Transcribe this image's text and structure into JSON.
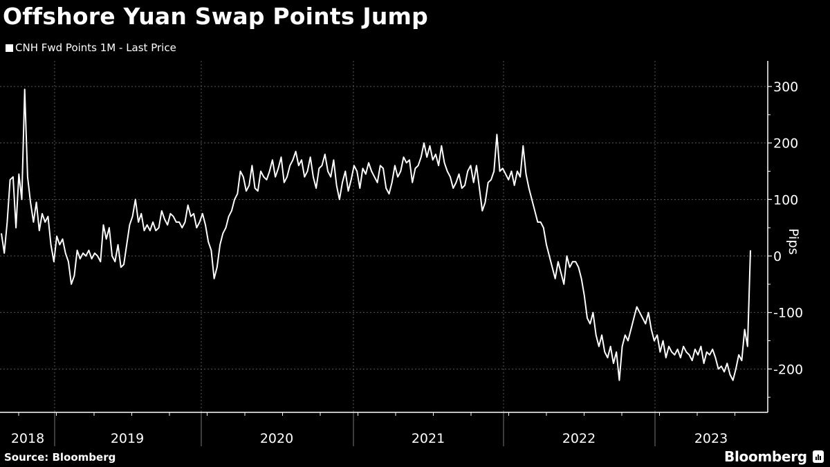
{
  "header": {
    "title": "Offshore Yuan Swap Points Jump",
    "legend_label": "CNH Fwd Points 1M - Last Price"
  },
  "footer": {
    "source": "Source: Bloomberg",
    "brand": "Bloomberg"
  },
  "colors": {
    "background": "#000000",
    "line": "#ffffff",
    "grid": "#666666"
  },
  "chart_data": {
    "type": "line",
    "title": "Offshore Yuan Swap Points Jump",
    "xlabel": "",
    "ylabel": "Pips",
    "ylim": [
      -280,
      350
    ],
    "yticks": [
      300,
      200,
      100,
      0,
      -100,
      -200
    ],
    "ytick_labels": [
      "300",
      "200",
      "100",
      "0",
      "-100",
      "-200"
    ],
    "xtick_labels": [
      "2018",
      "2019",
      "2020",
      "2021",
      "2022",
      "2023"
    ],
    "grid": true,
    "legend": [
      "CNH Fwd Points 1M - Last Price"
    ],
    "legend_position": "top-left",
    "series": [
      {
        "name": "CNH Fwd Points 1M - Last Price",
        "x_start": "2018-08",
        "x_end": "2023-04",
        "values": [
          40,
          5,
          60,
          135,
          140,
          50,
          145,
          100,
          295,
          140,
          95,
          60,
          95,
          45,
          75,
          60,
          70,
          20,
          -10,
          35,
          20,
          30,
          5,
          -10,
          -50,
          -35,
          10,
          -5,
          5,
          0,
          10,
          -5,
          5,
          0,
          -10,
          55,
          30,
          50,
          0,
          -10,
          20,
          -20,
          -15,
          20,
          55,
          70,
          100,
          60,
          75,
          45,
          55,
          45,
          60,
          45,
          50,
          80,
          65,
          55,
          75,
          70,
          60,
          60,
          50,
          60,
          90,
          70,
          75,
          50,
          60,
          75,
          55,
          25,
          10,
          -40,
          -20,
          20,
          40,
          50,
          70,
          80,
          100,
          110,
          150,
          140,
          115,
          125,
          160,
          120,
          115,
          150,
          140,
          135,
          150,
          170,
          140,
          155,
          175,
          130,
          140,
          160,
          170,
          185,
          160,
          170,
          140,
          150,
          175,
          140,
          120,
          155,
          160,
          180,
          150,
          140,
          170,
          125,
          100,
          130,
          150,
          115,
          135,
          160,
          150,
          120,
          155,
          145,
          165,
          150,
          140,
          130,
          160,
          155,
          120,
          110,
          130,
          160,
          140,
          150,
          175,
          165,
          170,
          130,
          155,
          160,
          175,
          200,
          175,
          195,
          170,
          180,
          160,
          195,
          165,
          150,
          140,
          120,
          130,
          145,
          120,
          125,
          150,
          160,
          130,
          160,
          120,
          80,
          95,
          130,
          135,
          150,
          215,
          150,
          155,
          145,
          135,
          150,
          125,
          150,
          140,
          195,
          145,
          120,
          100,
          80,
          60,
          60,
          50,
          20,
          0,
          -20,
          -40,
          -10,
          -30,
          -50,
          0,
          -20,
          -10,
          -10,
          -20,
          -40,
          -70,
          -110,
          -120,
          -100,
          -140,
          -160,
          -140,
          -170,
          -180,
          -160,
          -190,
          -170,
          -220,
          -160,
          -140,
          -150,
          -130,
          -110,
          -90,
          -100,
          -110,
          -120,
          -100,
          -130,
          -150,
          -140,
          -170,
          -150,
          -180,
          -160,
          -170,
          -175,
          -165,
          -180,
          -160,
          -170,
          -175,
          -185,
          -165,
          -175,
          -160,
          -190,
          -170,
          -175,
          -165,
          -180,
          -200,
          -195,
          -205,
          -190,
          -210,
          -220,
          -200,
          -175,
          -185,
          -130,
          -160,
          10
        ]
      }
    ]
  }
}
